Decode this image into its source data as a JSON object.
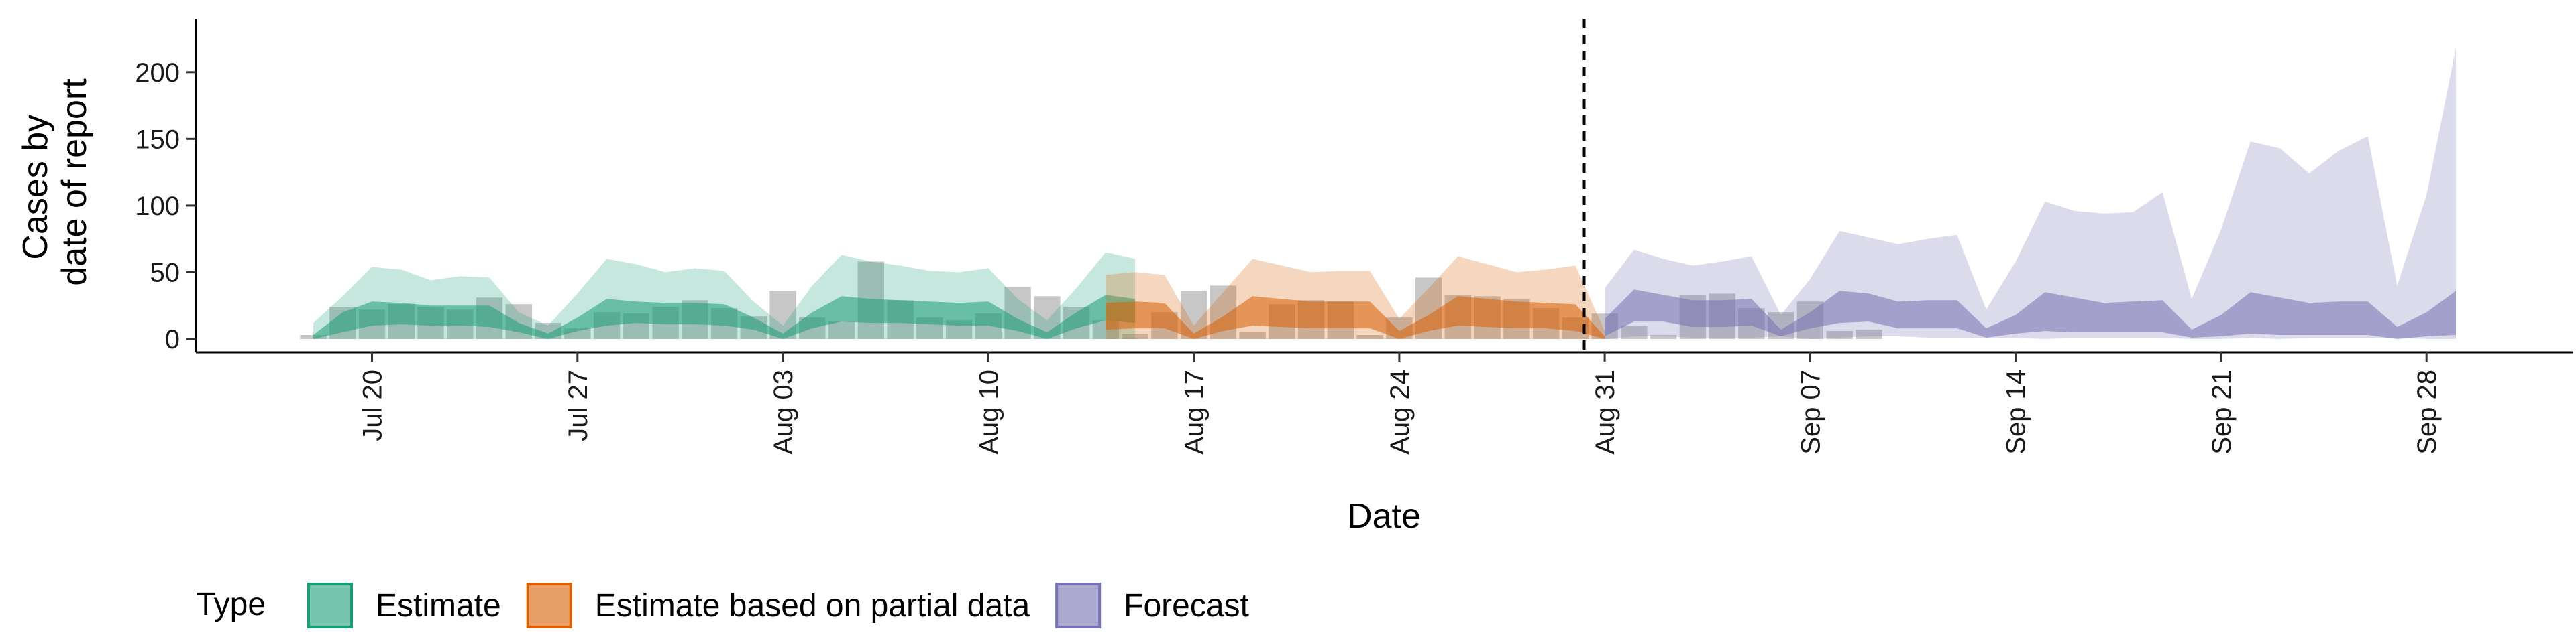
{
  "chart_data": {
    "type": "area",
    "xlabel": "Date",
    "ylabel_lines": [
      "Cases by",
      "date of report"
    ],
    "ylim": [
      0,
      225
    ],
    "y_ticks": [
      0,
      50,
      100,
      150,
      200
    ],
    "x_range": [
      "2020-07-14",
      "2020-10-03"
    ],
    "x_ticks": [
      {
        "date": "2020-07-20",
        "label": "Jul 20"
      },
      {
        "date": "2020-07-27",
        "label": "Jul 27"
      },
      {
        "date": "2020-08-03",
        "label": "Aug 03"
      },
      {
        "date": "2020-08-10",
        "label": "Aug 10"
      },
      {
        "date": "2020-08-17",
        "label": "Aug 17"
      },
      {
        "date": "2020-08-24",
        "label": "Aug 24"
      },
      {
        "date": "2020-08-31",
        "label": "Aug 31"
      },
      {
        "date": "2020-09-07",
        "label": "Sep 07"
      },
      {
        "date": "2020-09-14",
        "label": "Sep 14"
      },
      {
        "date": "2020-09-21",
        "label": "Sep 21"
      },
      {
        "date": "2020-09-28",
        "label": "Sep 28"
      }
    ],
    "forecast_start": "2020-08-30",
    "grid": false,
    "legend": {
      "title": "Type",
      "position": "bottom",
      "entries": [
        {
          "label": "Estimate",
          "fill": "#1b9e77",
          "stroke": "#1b9e77"
        },
        {
          "label": "Estimate based on partial data",
          "fill": "#d95f02",
          "stroke": "#d95f02"
        },
        {
          "label": "Forecast",
          "fill": "#7570b3",
          "stroke": "#7570b3"
        }
      ]
    },
    "reported_cases": {
      "color": "#999999",
      "start_date": "2020-07-18",
      "values": [
        3,
        24,
        22,
        26,
        24,
        22,
        31,
        26,
        12,
        8,
        20,
        19,
        24,
        29,
        23,
        17,
        36,
        16,
        13,
        58,
        29,
        16,
        14,
        19,
        39,
        32,
        24,
        14,
        4,
        20,
        36,
        40,
        5,
        26,
        29,
        28,
        3,
        16,
        46,
        33,
        32,
        30,
        23,
        16,
        19,
        10,
        3,
        33,
        34,
        23,
        20,
        28,
        6,
        7
      ]
    },
    "series": [
      {
        "name": "Estimate",
        "color": "#1b9e77",
        "start_date": "2020-07-18",
        "outer": {
          "lower": [
            0,
            0,
            0,
            0,
            0,
            0,
            0,
            0,
            0,
            0,
            0,
            0,
            0,
            0,
            0,
            0,
            0,
            0,
            0,
            0,
            0,
            0,
            0,
            0,
            0,
            0,
            0,
            0,
            0,
            0,
            0,
            0,
            0
          ],
          "upper": [
            12,
            32,
            54,
            52,
            44,
            47,
            46,
            20,
            10,
            34,
            60,
            56,
            50,
            53,
            51,
            28,
            10,
            40,
            63,
            58,
            55,
            51,
            50,
            53,
            30,
            14,
            38,
            65,
            60,
            0,
            0,
            0,
            0
          ]
        },
        "inner": {
          "lower": [
            0,
            5,
            10,
            11,
            10,
            10,
            9,
            5,
            0,
            6,
            10,
            12,
            11,
            11,
            10,
            7,
            0,
            8,
            13,
            12,
            12,
            11,
            10,
            10,
            6,
            0,
            8,
            14,
            12,
            0,
            0,
            0,
            0
          ],
          "upper": [
            3,
            20,
            28,
            27,
            25,
            25,
            25,
            12,
            4,
            16,
            30,
            28,
            27,
            27,
            26,
            16,
            4,
            20,
            32,
            30,
            29,
            28,
            27,
            28,
            15,
            5,
            20,
            33,
            30,
            0,
            0,
            0,
            0
          ]
        },
        "length": 29
      },
      {
        "name": "Estimate based on partial data",
        "color": "#d95f02",
        "start_date": "2020-08-14",
        "outer": {
          "lower": [
            0,
            0,
            0,
            0,
            0,
            0,
            0,
            0,
            0,
            0,
            0,
            0,
            0,
            0,
            0,
            0,
            0,
            0
          ],
          "upper": [
            48,
            50,
            48,
            10,
            35,
            60,
            55,
            50,
            51,
            51,
            15,
            38,
            62,
            56,
            50,
            52,
            55,
            6
          ]
        },
        "inner": {
          "lower": [
            7,
            8,
            8,
            0,
            6,
            10,
            9,
            8,
            8,
            8,
            0,
            6,
            10,
            9,
            8,
            8,
            6,
            0
          ],
          "upper": [
            27,
            28,
            27,
            4,
            17,
            32,
            30,
            28,
            28,
            28,
            6,
            18,
            32,
            30,
            28,
            27,
            26,
            2
          ]
        }
      },
      {
        "name": "Forecast",
        "color": "#7570b3",
        "start_date": "2020-08-31",
        "outer": {
          "lower": [
            0,
            2,
            2,
            1,
            1,
            1,
            2,
            0,
            1,
            2,
            2,
            1,
            1,
            1,
            1,
            0,
            1,
            1,
            1,
            1,
            0,
            0,
            1,
            0,
            1,
            1,
            1,
            1,
            0,
            0,
            0
          ],
          "upper": [
            38,
            67,
            60,
            55,
            58,
            62,
            18,
            45,
            81,
            76,
            71,
            75,
            78,
            22,
            58,
            103,
            96,
            94,
            95,
            110,
            30,
            82,
            148,
            143,
            124,
            141,
            152,
            40,
            108,
            218,
            0
          ]
        },
        "inner": {
          "lower": [
            2,
            13,
            13,
            9,
            9,
            10,
            2,
            8,
            12,
            13,
            8,
            8,
            8,
            1,
            4,
            6,
            5,
            5,
            5,
            5,
            1,
            2,
            4,
            3,
            3,
            3,
            3,
            0,
            2,
            3,
            0
          ],
          "upper": [
            15,
            37,
            33,
            29,
            29,
            30,
            7,
            20,
            36,
            34,
            28,
            29,
            29,
            8,
            18,
            35,
            31,
            27,
            28,
            29,
            7,
            18,
            35,
            31,
            27,
            28,
            28,
            9,
            20,
            36,
            0
          ]
        },
        "length": 30
      }
    ]
  }
}
